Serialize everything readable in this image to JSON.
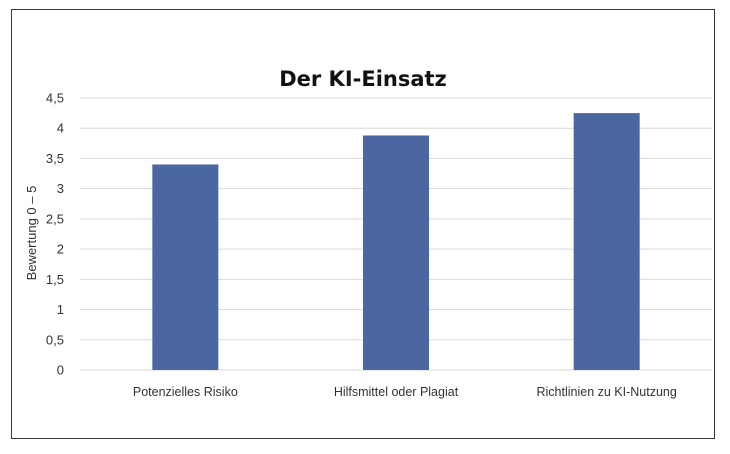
{
  "chart_data": {
    "type": "bar",
    "title": "Der KI-Einsatz",
    "xlabel": "",
    "ylabel": "Bewertung 0 – 5",
    "categories": [
      "Potenzielles Risiko",
      "Hilfsmittel oder Plagiat",
      "Richtlinien zu KI-Nutzung"
    ],
    "values": [
      3.4,
      3.88,
      4.25
    ],
    "ylim": [
      0,
      4.5
    ],
    "yticks": [
      "0",
      "0,5",
      "1",
      "1,5",
      "2",
      "2,5",
      "3",
      "3,5",
      "4",
      "4,5"
    ],
    "grid": true,
    "legend": "none",
    "colors": {
      "bar": "#4a67a1"
    }
  }
}
